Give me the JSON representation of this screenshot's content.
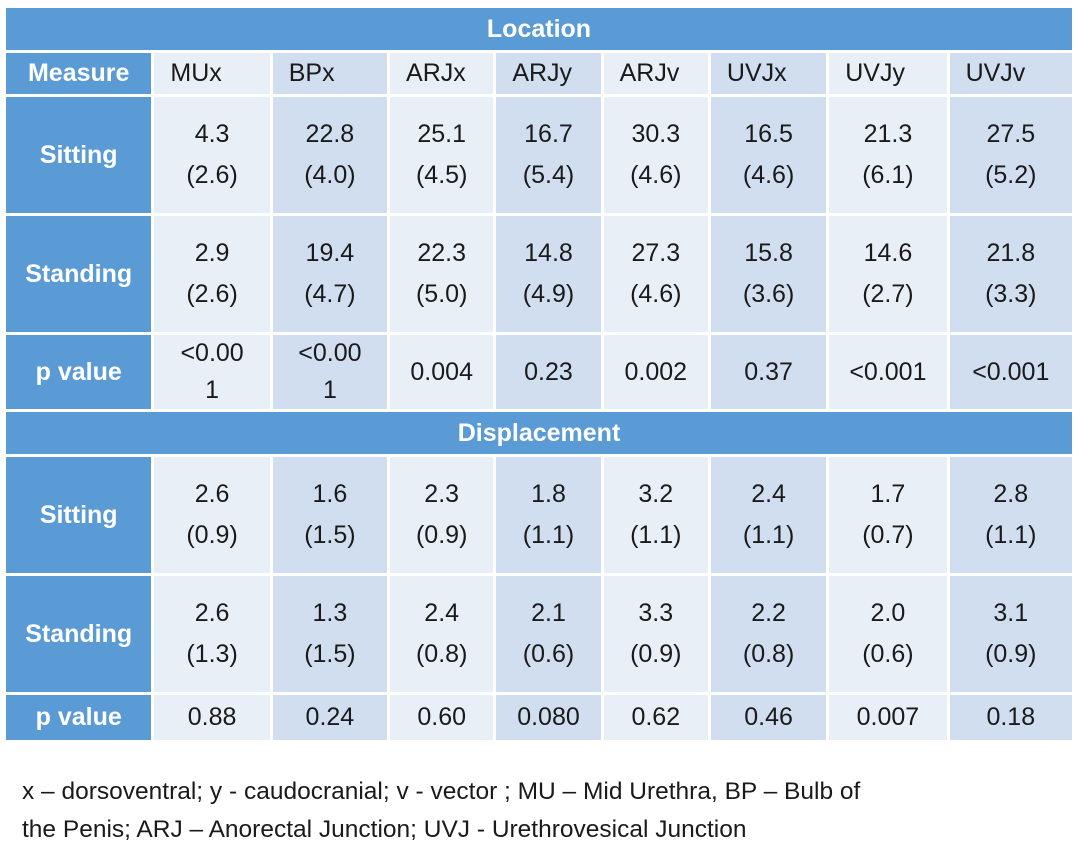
{
  "location": {
    "title": "Location",
    "measure_label": "Measure",
    "columns": [
      "MUx",
      "BPx",
      "ARJx",
      "ARJy",
      "ARJv",
      "UVJx",
      "UVJy",
      "UVJv"
    ],
    "rows": [
      {
        "label": "Sitting",
        "means": [
          "4.3",
          "22.8",
          "25.1",
          "16.7",
          "30.3",
          "16.5",
          "21.3",
          "27.5"
        ],
        "sds": [
          "(2.6)",
          "(4.0)",
          "(4.5)",
          "(5.4)",
          "(4.6)",
          "(4.6)",
          "(6.1)",
          "(5.2)"
        ]
      },
      {
        "label": "Standing",
        "means": [
          "2.9",
          "19.4",
          "22.3",
          "14.8",
          "27.3",
          "15.8",
          "14.6",
          "21.8"
        ],
        "sds": [
          "(2.6)",
          "(4.7)",
          "(5.0)",
          "(4.9)",
          "(4.6)",
          "(3.6)",
          "(2.7)",
          "(3.3)"
        ]
      }
    ],
    "p_label": "p value",
    "p_values": [
      [
        "<0.00",
        "1"
      ],
      [
        "<0.00",
        "1"
      ],
      [
        "0.004"
      ],
      [
        "0.23"
      ],
      [
        "0.002"
      ],
      [
        "0.37"
      ],
      [
        "<0.001"
      ],
      [
        "<0.001"
      ]
    ]
  },
  "displacement": {
    "title": "Displacement",
    "rows": [
      {
        "label": "Sitting",
        "means": [
          "2.6",
          "1.6",
          "2.3",
          "1.8",
          "3.2",
          "2.4",
          "1.7",
          "2.8"
        ],
        "sds": [
          "(0.9)",
          "(1.5)",
          "(0.9)",
          "(1.1)",
          "(1.1)",
          "(1.1)",
          "(0.7)",
          "(1.1)"
        ]
      },
      {
        "label": "Standing",
        "means": [
          "2.6",
          "1.3",
          "2.4",
          "2.1",
          "3.3",
          "2.2",
          "2.0",
          "3.1"
        ],
        "sds": [
          "(1.3)",
          "(1.5)",
          "(0.8)",
          "(0.6)",
          "(0.9)",
          "(0.8)",
          "(0.6)",
          "(0.9)"
        ]
      }
    ],
    "p_label": "p value",
    "p_values": [
      "0.88",
      "0.24",
      "0.60",
      "0.080",
      "0.62",
      "0.46",
      "0.007",
      "0.18"
    ]
  },
  "footnote": {
    "line1": "x – dorsoventral; y - caudocranial; v - vector ; MU – Mid Urethra, BP – Bulb of",
    "line2": "the Penis; ARJ – Anorectal Junction; UVJ -  Urethrovesical Junction"
  },
  "colors": {
    "header_blue": "#5b9bd5",
    "cell_light": "#e9eff7",
    "cell_dark": "#d0deef"
  }
}
